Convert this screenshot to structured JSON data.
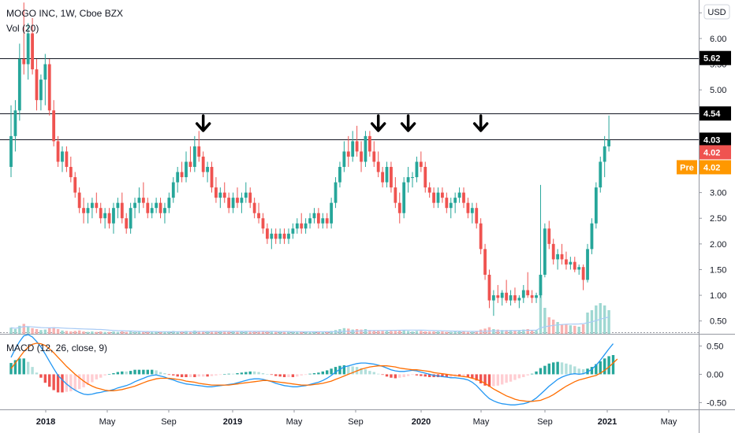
{
  "header": {
    "symbol_line": "MOGO INC, 1W, Cboe BZX",
    "volume_label": "Vol (20)",
    "currency_button": "USD"
  },
  "macd": {
    "label": "MACD (12, 26, close, 9)",
    "tick_labels": [
      "0.50",
      "0.00",
      "-0.50"
    ],
    "ylim": [
      -0.62,
      0.66
    ],
    "colors": {
      "macd_line": "#2196f3",
      "signal_line": "#ff6d00",
      "hist_up_strong": "#26a69a",
      "hist_up_weak": "#b2dfdb",
      "hist_down_strong": "#ef5350",
      "hist_down_weak": "#ffcdd2"
    }
  },
  "price_tags": [
    {
      "label": "5.62",
      "kind": "hline",
      "value": 5.62,
      "bg": "#000000"
    },
    {
      "label": "4.54",
      "kind": "hline",
      "value": 4.54,
      "bg": "#000000"
    },
    {
      "label": "4.03",
      "kind": "hline",
      "value": 4.03,
      "bg": "#000000"
    },
    {
      "label": "4.02",
      "kind": "last",
      "value": 4.02,
      "bg": "#ef5350"
    },
    {
      "label": "4.02",
      "kind": "pre",
      "value": 3.7,
      "bg": "#ff9800",
      "prefix": "Pre"
    }
  ],
  "chart_data": {
    "type": "candlestick",
    "title": "MOGO INC, 1W, Cboe BZX",
    "ylim": [
      0.25,
      6.75
    ],
    "y_tick_labels": [
      "6.50",
      "6.00",
      "5.50",
      "5.00",
      "4.50",
      "4.00",
      "3.50",
      "3.00",
      "2.50",
      "2.00",
      "1.50",
      "1.00",
      "0.50"
    ],
    "x_tick_labels": [
      "2018",
      "May",
      "Sep",
      "2019",
      "May",
      "Sep",
      "2020",
      "May",
      "Sep",
      "2021",
      "May"
    ],
    "x_tick_bold": [
      true,
      false,
      false,
      true,
      false,
      false,
      true,
      false,
      false,
      true,
      false
    ],
    "horizontal_lines": [
      5.62,
      4.54,
      4.03
    ],
    "arrow_marker_bars": [
      45,
      86,
      93,
      110
    ],
    "colors": {
      "up": "#26a69a",
      "down": "#ef5350",
      "volume_up": "#9fd8d2",
      "volume_down": "#f7b1b0",
      "volume_ma": "#a9cbf5"
    },
    "candles": [
      [
        3.5,
        4.7,
        3.3,
        4.1
      ],
      [
        4.1,
        4.8,
        3.8,
        4.6
      ],
      [
        4.6,
        5.9,
        4.4,
        5.6
      ],
      [
        5.6,
        6.7,
        5.3,
        5.5
      ],
      [
        5.5,
        6.3,
        5.2,
        6.1
      ],
      [
        6.1,
        6.4,
        5.3,
        5.4
      ],
      [
        5.4,
        5.6,
        4.6,
        4.8
      ],
      [
        4.8,
        5.3,
        4.6,
        5.2
      ],
      [
        5.2,
        5.7,
        4.7,
        5.5
      ],
      [
        5.5,
        5.6,
        4.5,
        4.6
      ],
      [
        4.6,
        4.8,
        3.9,
        4.0
      ],
      [
        4.0,
        4.1,
        3.5,
        3.6
      ],
      [
        3.6,
        3.9,
        3.4,
        3.8
      ],
      [
        3.8,
        3.9,
        3.4,
        3.5
      ],
      [
        3.5,
        3.7,
        3.2,
        3.3
      ],
      [
        3.3,
        3.4,
        2.9,
        3.0
      ],
      [
        3.0,
        3.1,
        2.6,
        2.7
      ],
      [
        2.7,
        2.9,
        2.4,
        2.6
      ],
      [
        2.6,
        2.8,
        2.4,
        2.7
      ],
      [
        2.7,
        2.9,
        2.5,
        2.8
      ],
      [
        2.8,
        3.0,
        2.6,
        2.7
      ],
      [
        2.7,
        2.8,
        2.4,
        2.5
      ],
      [
        2.5,
        2.7,
        2.3,
        2.6
      ],
      [
        2.6,
        2.7,
        2.3,
        2.4
      ],
      [
        2.4,
        2.8,
        2.2,
        2.7
      ],
      [
        2.7,
        2.9,
        2.5,
        2.8
      ],
      [
        2.8,
        3.0,
        2.4,
        2.5
      ],
      [
        2.5,
        2.6,
        2.2,
        2.3
      ],
      [
        2.3,
        2.8,
        2.2,
        2.7
      ],
      [
        2.7,
        2.9,
        2.5,
        2.8
      ],
      [
        2.8,
        3.1,
        2.6,
        2.9
      ],
      [
        2.9,
        3.2,
        2.7,
        2.8
      ],
      [
        2.8,
        2.9,
        2.5,
        2.6
      ],
      [
        2.6,
        2.8,
        2.5,
        2.7
      ],
      [
        2.7,
        2.9,
        2.6,
        2.8
      ],
      [
        2.8,
        2.9,
        2.5,
        2.6
      ],
      [
        2.6,
        2.8,
        2.4,
        2.7
      ],
      [
        2.7,
        3.0,
        2.6,
        2.9
      ],
      [
        2.9,
        3.3,
        2.8,
        3.2
      ],
      [
        3.2,
        3.5,
        3.0,
        3.4
      ],
      [
        3.4,
        3.6,
        3.2,
        3.3
      ],
      [
        3.3,
        3.8,
        3.2,
        3.6
      ],
      [
        3.6,
        3.9,
        3.4,
        3.5
      ],
      [
        3.5,
        4.1,
        3.4,
        3.9
      ],
      [
        3.9,
        4.2,
        3.6,
        3.7
      ],
      [
        3.7,
        3.8,
        3.3,
        3.4
      ],
      [
        3.4,
        3.6,
        3.2,
        3.5
      ],
      [
        3.5,
        3.6,
        3.0,
        3.1
      ],
      [
        3.1,
        3.3,
        2.8,
        2.9
      ],
      [
        2.9,
        3.1,
        2.7,
        3.0
      ],
      [
        3.0,
        3.2,
        2.8,
        2.9
      ],
      [
        2.9,
        3.0,
        2.6,
        2.7
      ],
      [
        2.7,
        3.0,
        2.6,
        2.9
      ],
      [
        2.9,
        3.1,
        2.7,
        2.8
      ],
      [
        2.8,
        3.0,
        2.6,
        2.9
      ],
      [
        2.9,
        3.2,
        2.8,
        3.0
      ],
      [
        3.0,
        3.1,
        2.7,
        2.8
      ],
      [
        2.8,
        2.9,
        2.5,
        2.6
      ],
      [
        2.6,
        2.8,
        2.4,
        2.5
      ],
      [
        2.5,
        2.6,
        2.2,
        2.3
      ],
      [
        2.3,
        2.4,
        2.0,
        2.1
      ],
      [
        2.1,
        2.3,
        1.9,
        2.2
      ],
      [
        2.2,
        2.3,
        2.0,
        2.1
      ],
      [
        2.1,
        2.3,
        2.0,
        2.2
      ],
      [
        2.2,
        2.3,
        2.0,
        2.1
      ],
      [
        2.1,
        2.3,
        2.0,
        2.2
      ],
      [
        2.2,
        2.4,
        2.1,
        2.3
      ],
      [
        2.3,
        2.5,
        2.2,
        2.4
      ],
      [
        2.4,
        2.6,
        2.2,
        2.3
      ],
      [
        2.3,
        2.5,
        2.2,
        2.4
      ],
      [
        2.4,
        2.6,
        2.3,
        2.5
      ],
      [
        2.5,
        2.7,
        2.4,
        2.6
      ],
      [
        2.6,
        2.7,
        2.3,
        2.4
      ],
      [
        2.4,
        2.6,
        2.3,
        2.5
      ],
      [
        2.5,
        2.6,
        2.3,
        2.4
      ],
      [
        2.4,
        2.9,
        2.3,
        2.8
      ],
      [
        2.8,
        3.3,
        2.7,
        3.2
      ],
      [
        3.2,
        3.6,
        3.1,
        3.5
      ],
      [
        3.5,
        4.0,
        3.4,
        3.8
      ],
      [
        3.8,
        4.1,
        3.5,
        3.7
      ],
      [
        3.7,
        4.2,
        3.6,
        4.0
      ],
      [
        4.0,
        4.3,
        3.7,
        3.8
      ],
      [
        3.8,
        4.0,
        3.4,
        3.6
      ],
      [
        3.6,
        4.2,
        3.5,
        4.1
      ],
      [
        4.1,
        4.2,
        3.7,
        3.8
      ],
      [
        3.8,
        4.0,
        3.5,
        3.6
      ],
      [
        3.6,
        3.8,
        3.3,
        3.4
      ],
      [
        3.4,
        3.5,
        3.1,
        3.2
      ],
      [
        3.2,
        3.6,
        3.1,
        3.5
      ],
      [
        3.5,
        3.6,
        3.0,
        3.1
      ],
      [
        3.1,
        3.3,
        2.7,
        2.8
      ],
      [
        2.8,
        3.0,
        2.4,
        2.6
      ],
      [
        2.6,
        3.3,
        2.5,
        3.2
      ],
      [
        3.2,
        3.5,
        3.0,
        3.3
      ],
      [
        3.3,
        3.4,
        3.1,
        3.3
      ],
      [
        3.3,
        3.7,
        3.2,
        3.6
      ],
      [
        3.6,
        3.8,
        3.4,
        3.5
      ],
      [
        3.5,
        3.6,
        3.0,
        3.1
      ],
      [
        3.1,
        3.2,
        2.9,
        3.0
      ],
      [
        3.0,
        3.1,
        2.7,
        2.8
      ],
      [
        2.8,
        3.1,
        2.7,
        3.0
      ],
      [
        3.0,
        3.1,
        2.8,
        2.9
      ],
      [
        2.9,
        3.0,
        2.6,
        2.7
      ],
      [
        2.7,
        2.9,
        2.5,
        2.8
      ],
      [
        2.8,
        3.0,
        2.6,
        2.9
      ],
      [
        2.9,
        3.1,
        2.8,
        3.0
      ],
      [
        3.0,
        3.1,
        2.7,
        2.8
      ],
      [
        2.8,
        2.9,
        2.5,
        2.6
      ],
      [
        2.6,
        2.8,
        2.4,
        2.7
      ],
      [
        2.7,
        2.8,
        2.3,
        2.4
      ],
      [
        2.4,
        2.5,
        1.8,
        1.9
      ],
      [
        1.9,
        2.0,
        1.3,
        1.4
      ],
      [
        1.4,
        1.5,
        0.75,
        0.9
      ],
      [
        0.9,
        1.1,
        0.6,
        1.0
      ],
      [
        1.0,
        1.2,
        0.85,
        0.95
      ],
      [
        0.95,
        1.1,
        0.8,
        1.05
      ],
      [
        1.05,
        1.3,
        0.85,
        0.9
      ],
      [
        0.9,
        1.1,
        0.8,
        1.0
      ],
      [
        1.0,
        1.15,
        0.85,
        0.9
      ],
      [
        0.9,
        1.0,
        0.75,
        0.95
      ],
      [
        0.95,
        1.2,
        0.85,
        1.1
      ],
      [
        1.1,
        1.45,
        0.95,
        1.0
      ],
      [
        1.0,
        1.1,
        0.85,
        0.95
      ],
      [
        0.95,
        1.05,
        0.85,
        1.0
      ],
      [
        1.0,
        3.15,
        0.95,
        1.4
      ],
      [
        1.4,
        2.4,
        1.35,
        2.3
      ],
      [
        2.3,
        2.45,
        1.9,
        2.0
      ],
      [
        2.0,
        2.1,
        1.6,
        1.7
      ],
      [
        1.7,
        1.9,
        1.5,
        1.8
      ],
      [
        1.8,
        2.0,
        1.6,
        1.7
      ],
      [
        1.7,
        1.85,
        1.5,
        1.6
      ],
      [
        1.6,
        1.75,
        1.5,
        1.65
      ],
      [
        1.65,
        1.75,
        1.45,
        1.5
      ],
      [
        1.5,
        1.6,
        1.4,
        1.55
      ],
      [
        1.55,
        1.6,
        1.1,
        1.3
      ],
      [
        1.3,
        2.0,
        1.25,
        1.9
      ],
      [
        1.9,
        2.5,
        1.8,
        2.4
      ],
      [
        2.4,
        3.2,
        2.3,
        3.1
      ],
      [
        3.1,
        3.7,
        3.0,
        3.6
      ],
      [
        3.6,
        4.1,
        3.3,
        3.9
      ],
      [
        3.9,
        4.5,
        3.8,
        4.02
      ]
    ],
    "volume_scale_max": 1.0,
    "volume": [
      0.13,
      0.1,
      0.17,
      0.21,
      0.15,
      0.12,
      0.1,
      0.08,
      0.09,
      0.12,
      0.14,
      0.1,
      0.07,
      0.06,
      0.05,
      0.06,
      0.07,
      0.05,
      0.04,
      0.05,
      0.04,
      0.05,
      0.04,
      0.04,
      0.05,
      0.04,
      0.05,
      0.04,
      0.05,
      0.04,
      0.05,
      0.04,
      0.04,
      0.05,
      0.04,
      0.04,
      0.05,
      0.05,
      0.06,
      0.05,
      0.05,
      0.06,
      0.05,
      0.07,
      0.06,
      0.05,
      0.05,
      0.05,
      0.06,
      0.05,
      0.05,
      0.05,
      0.05,
      0.04,
      0.05,
      0.05,
      0.04,
      0.05,
      0.05,
      0.06,
      0.05,
      0.04,
      0.04,
      0.04,
      0.04,
      0.04,
      0.04,
      0.04,
      0.04,
      0.04,
      0.04,
      0.04,
      0.04,
      0.04,
      0.04,
      0.06,
      0.08,
      0.1,
      0.12,
      0.11,
      0.09,
      0.1,
      0.09,
      0.1,
      0.08,
      0.07,
      0.07,
      0.06,
      0.06,
      0.06,
      0.06,
      0.08,
      0.07,
      0.06,
      0.05,
      0.06,
      0.06,
      0.05,
      0.05,
      0.05,
      0.05,
      0.05,
      0.04,
      0.04,
      0.05,
      0.05,
      0.05,
      0.04,
      0.04,
      0.05,
      0.09,
      0.11,
      0.14,
      0.1,
      0.09,
      0.08,
      0.08,
      0.08,
      0.07,
      0.08,
      0.09,
      0.1,
      0.08,
      0.08,
      1.0,
      0.55,
      0.35,
      0.3,
      0.25,
      0.2,
      0.2,
      0.18,
      0.17,
      0.15,
      0.2,
      0.45,
      0.5,
      0.6,
      0.65,
      0.6,
      0.5
    ],
    "macd": {
      "macd_line": [
        0.3,
        0.45,
        0.58,
        0.68,
        0.7,
        0.66,
        0.58,
        0.48,
        0.36,
        0.23,
        0.1,
        -0.02,
        -0.1,
        -0.17,
        -0.23,
        -0.28,
        -0.32,
        -0.35,
        -0.36,
        -0.35,
        -0.33,
        -0.32,
        -0.3,
        -0.29,
        -0.27,
        -0.24,
        -0.22,
        -0.2,
        -0.17,
        -0.13,
        -0.1,
        -0.07,
        -0.04,
        -0.02,
        -0.01,
        -0.03,
        -0.05,
        -0.08,
        -0.1,
        -0.13,
        -0.15,
        -0.17,
        -0.18,
        -0.19,
        -0.2,
        -0.21,
        -0.22,
        -0.22,
        -0.21,
        -0.2,
        -0.19,
        -0.18,
        -0.17,
        -0.15,
        -0.13,
        -0.11,
        -0.09,
        -0.08,
        -0.08,
        -0.09,
        -0.11,
        -0.13,
        -0.16,
        -0.18,
        -0.2,
        -0.21,
        -0.22,
        -0.22,
        -0.21,
        -0.2,
        -0.18,
        -0.16,
        -0.14,
        -0.11,
        -0.07,
        -0.02,
        0.04,
        0.09,
        0.13,
        0.15,
        0.17,
        0.19,
        0.2,
        0.2,
        0.19,
        0.18,
        0.16,
        0.14,
        0.11,
        0.08,
        0.06,
        0.05,
        0.05,
        0.06,
        0.07,
        0.06,
        0.04,
        0.02,
        0.0,
        -0.02,
        -0.03,
        -0.04,
        -0.05,
        -0.06,
        -0.06,
        -0.07,
        -0.08,
        -0.1,
        -0.14,
        -0.2,
        -0.28,
        -0.36,
        -0.43,
        -0.47,
        -0.5,
        -0.52,
        -0.53,
        -0.54,
        -0.54,
        -0.53,
        -0.52,
        -0.5,
        -0.47,
        -0.42,
        -0.35,
        -0.28,
        -0.21,
        -0.15,
        -0.09,
        -0.05,
        -0.02,
        0.0,
        0.01,
        0.0,
        0.01,
        0.04,
        0.09,
        0.16,
        0.25,
        0.35,
        0.45,
        0.54
      ],
      "signal_line": [
        0.1,
        0.2,
        0.3,
        0.4,
        0.48,
        0.53,
        0.55,
        0.54,
        0.51,
        0.45,
        0.38,
        0.3,
        0.22,
        0.14,
        0.07,
        0.0,
        -0.06,
        -0.12,
        -0.17,
        -0.21,
        -0.24,
        -0.26,
        -0.28,
        -0.29,
        -0.29,
        -0.28,
        -0.27,
        -0.25,
        -0.23,
        -0.21,
        -0.18,
        -0.15,
        -0.12,
        -0.1,
        -0.08,
        -0.07,
        -0.07,
        -0.07,
        -0.08,
        -0.09,
        -0.1,
        -0.12,
        -0.13,
        -0.14,
        -0.16,
        -0.17,
        -0.18,
        -0.19,
        -0.19,
        -0.19,
        -0.19,
        -0.19,
        -0.18,
        -0.17,
        -0.16,
        -0.15,
        -0.14,
        -0.13,
        -0.12,
        -0.11,
        -0.11,
        -0.12,
        -0.13,
        -0.14,
        -0.15,
        -0.16,
        -0.17,
        -0.18,
        -0.19,
        -0.19,
        -0.19,
        -0.18,
        -0.17,
        -0.16,
        -0.14,
        -0.12,
        -0.09,
        -0.06,
        -0.03,
        0.0,
        0.03,
        0.06,
        0.09,
        0.11,
        0.13,
        0.14,
        0.15,
        0.15,
        0.15,
        0.14,
        0.13,
        0.11,
        0.1,
        0.09,
        0.08,
        0.08,
        0.07,
        0.06,
        0.05,
        0.03,
        0.02,
        0.01,
        0.0,
        -0.01,
        -0.02,
        -0.03,
        -0.04,
        -0.05,
        -0.07,
        -0.09,
        -0.12,
        -0.16,
        -0.21,
        -0.26,
        -0.3,
        -0.34,
        -0.38,
        -0.41,
        -0.44,
        -0.46,
        -0.47,
        -0.48,
        -0.48,
        -0.47,
        -0.46,
        -0.43,
        -0.4,
        -0.36,
        -0.31,
        -0.26,
        -0.21,
        -0.17,
        -0.13,
        -0.1,
        -0.08,
        -0.06,
        -0.04,
        -0.02,
        0.02,
        0.07,
        0.13,
        0.2,
        0.27
      ]
    }
  }
}
